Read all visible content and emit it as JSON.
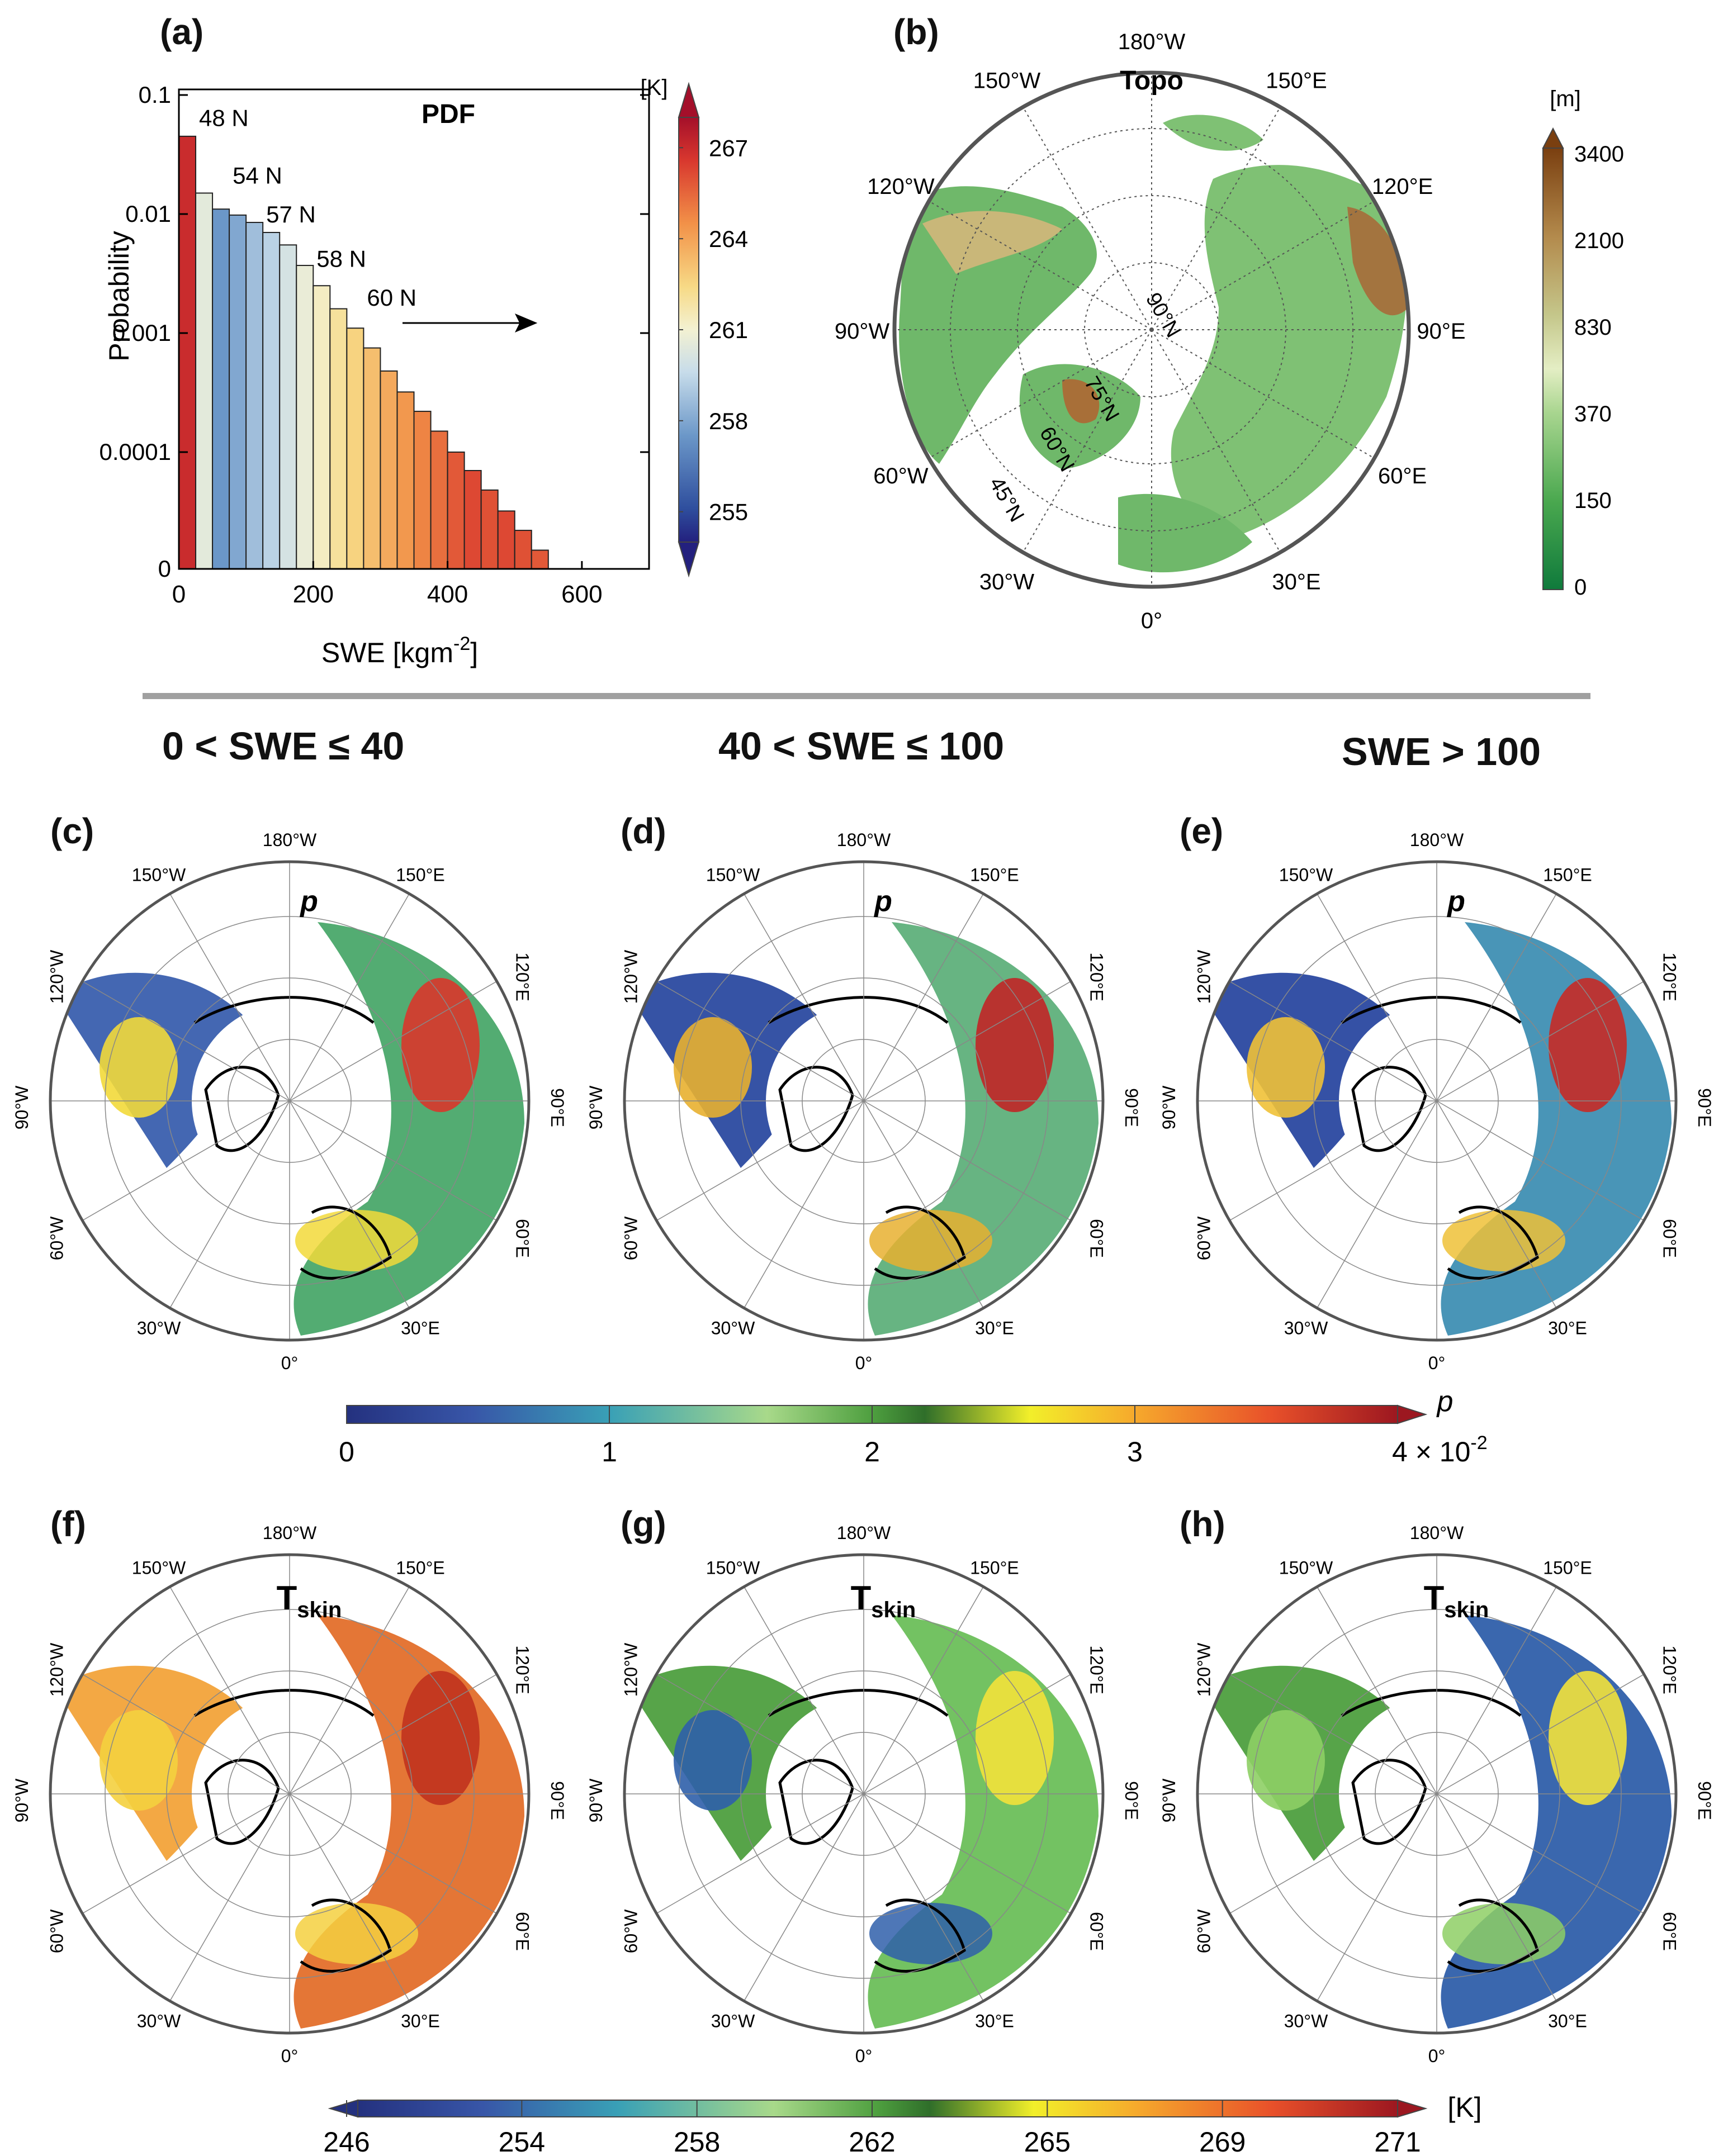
{
  "panels": {
    "a": "(a)",
    "b": "(b)",
    "c": "(c)",
    "d": "(d)",
    "e": "(e)",
    "f": "(f)",
    "g": "(g)",
    "h": "(h)"
  },
  "group_titles": [
    "0 < SWE ≤ 40",
    "40 < SWE ≤ 100",
    "SWE > 100"
  ],
  "chart_data": [
    {
      "type": "bar",
      "panel": "a",
      "title": "PDF",
      "xlabel": "SWE [kgm",
      "xlabel_sup": "-2",
      "xlabel_end": "]",
      "ylabel": "Probability",
      "yscale": "log",
      "xlim": [
        0,
        700
      ],
      "xticks": [
        0,
        200,
        400,
        600
      ],
      "ytick_labels": [
        "0.1",
        "0.01",
        "0.001",
        "0.0001",
        "0"
      ],
      "bin_width": 25,
      "bin_starts": [
        0,
        25,
        50,
        75,
        100,
        125,
        150,
        175,
        200,
        225,
        250,
        275,
        300,
        325,
        350,
        375,
        400,
        425,
        450,
        475,
        500,
        525,
        550,
        575,
        600,
        625,
        650,
        675
      ],
      "values": [
        0.045,
        0.015,
        0.011,
        0.0098,
        0.0085,
        0.007,
        0.0055,
        0.0037,
        0.0025,
        0.0016,
        0.0011,
        0.00075,
        0.00048,
        0.00032,
        0.00022,
        0.00015,
        0.0001,
        7e-05,
        4.8e-05,
        3.2e-05,
        2.2e-05,
        1.5e-05,
        1.05e-05,
        7.5e-06,
        6e-06,
        4.5e-06,
        3e-06,
        2.5e-06
      ],
      "bin_temperatures_K": [
        267,
        260.5,
        257.5,
        258,
        258.7,
        259.3,
        260,
        260.7,
        261.3,
        262,
        262.6,
        263.2,
        263.8,
        264.3,
        264.8,
        265.3,
        265.8,
        266.2,
        266,
        266.2,
        266,
        265.8,
        266.4,
        266.7,
        267,
        266.8,
        266.5,
        266.8
      ],
      "annotations": [
        {
          "text": "48 N",
          "x": 25,
          "y": 0.055
        },
        {
          "text": "54 N",
          "x": 75,
          "y": 0.018
        },
        {
          "text": "57 N",
          "x": 125,
          "y": 0.0085
        },
        {
          "text": "58 N",
          "x": 200,
          "y": 0.0036
        },
        {
          "text": "60 N",
          "x": 275,
          "y": 0.0017
        }
      ],
      "colorbar": {
        "unit": "[K]",
        "ticks": [
          "267",
          "264",
          "261",
          "258",
          "255"
        ],
        "min": 254,
        "max": 268
      }
    },
    {
      "type": "map",
      "panel": "b",
      "title": "Topo",
      "projection": "north polar stereographic",
      "lon_labels": [
        "180°W",
        "150°E",
        "120°E",
        "90°E",
        "60°E",
        "30°E",
        "0°",
        "30°W",
        "60°W",
        "90°W",
        "120°W",
        "150°W"
      ],
      "lat_labels": [
        "90°N",
        "75°N",
        "60°N",
        "45°N"
      ],
      "colorbar": {
        "unit": "[m]",
        "ticks": [
          "3400",
          "2100",
          "830",
          "370",
          "150",
          "0"
        ]
      }
    },
    {
      "type": "heatmap",
      "group": "soil-map-grid",
      "row_p": {
        "panels": [
          "c",
          "d",
          "e"
        ],
        "variable": "p"
      },
      "row_t": {
        "panels": [
          "f",
          "g",
          "h"
        ],
        "variable": "T",
        "variable_sub": "skin"
      },
      "lon_labels": [
        "180°W",
        "150°E",
        "120°E",
        "90°E",
        "60°E",
        "30°E",
        "0°",
        "30°W",
        "60°W",
        "90°W",
        "120°W",
        "150°W"
      ],
      "p_colorbar": {
        "label": "p",
        "ticks": [
          "0",
          "1",
          "2",
          "3"
        ],
        "last_tick": "4 × 10",
        "last_tick_exp": "-2",
        "min": 0,
        "max": 4
      },
      "t_colorbar": {
        "unit": "[K]",
        "ticks": [
          "246",
          "254",
          "258",
          "262",
          "265",
          "269",
          "271"
        ]
      }
    }
  ]
}
